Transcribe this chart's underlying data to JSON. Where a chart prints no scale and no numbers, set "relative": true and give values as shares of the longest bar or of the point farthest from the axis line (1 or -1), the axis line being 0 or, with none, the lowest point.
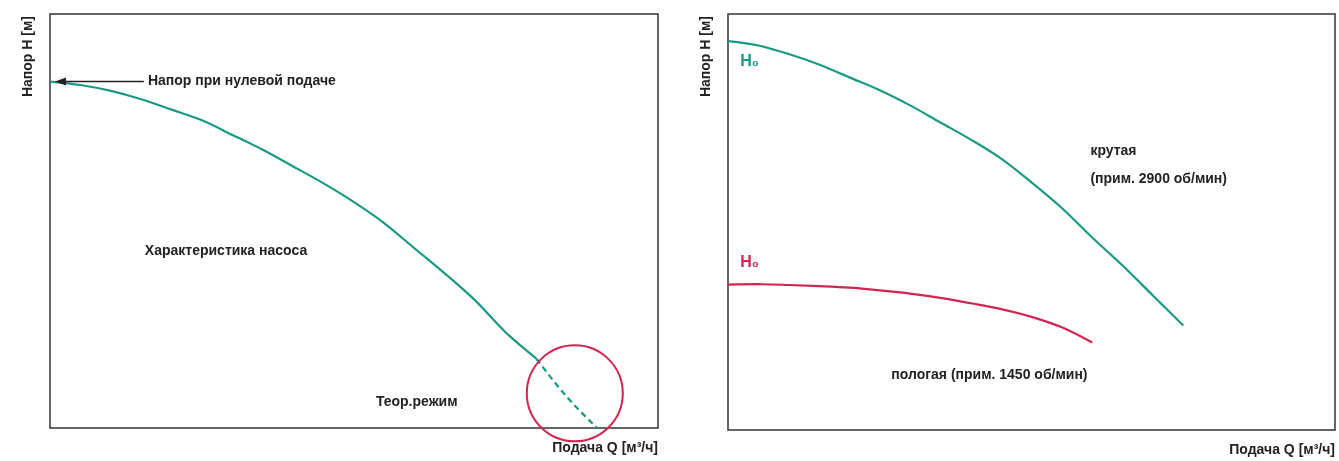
{
  "chart_data": [
    {
      "type": "line",
      "relative": true,
      "xlabel": "Подача Q [м³/ч]",
      "ylabel": "Напор H [м]",
      "categories": [
        null,
        null,
        null,
        null,
        null,
        null,
        null,
        null,
        null,
        null,
        null,
        null,
        null,
        null,
        null,
        null,
        null,
        null,
        null,
        null,
        null
      ],
      "series": [
        {
          "name": "Характеристика насоса",
          "color": "#1a9a85",
          "line_style": "solid",
          "values": [
            1.0,
            0.99,
            0.973,
            0.949,
            0.919,
            0.888,
            0.846,
            0.803,
            0.755,
            0.706,
            0.652,
            0.591,
            0.518,
            0.445,
            0.367,
            0.275,
            0.2,
            null,
            null,
            null,
            null
          ]
        },
        {
          "color": "#1a9a85",
          "line_style": "dashed",
          "values": [
            null,
            null,
            null,
            null,
            null,
            null,
            null,
            null,
            null,
            null,
            null,
            null,
            null,
            null,
            null,
            null,
            0.2,
            0.09,
            0.0,
            null,
            null
          ]
        }
      ],
      "annotations": [
        "Напор при нулевой подаче",
        "Теор.режим"
      ]
    },
    {
      "type": "line",
      "relative": true,
      "xlabel": "Подача Q [м³/ч]",
      "ylabel": "Напор H [м]",
      "categories": [
        null,
        null,
        null,
        null,
        null,
        null,
        null,
        null,
        null,
        null,
        null,
        null,
        null,
        null,
        null,
        null,
        null,
        null,
        null,
        null,
        null
      ],
      "series": [
        {
          "name": "крутая (прим. 2900 об/мин)",
          "color": "#1a9a85",
          "values": [
            1.0,
            0.989,
            0.967,
            0.94,
            0.907,
            0.874,
            0.835,
            0.791,
            0.747,
            0.698,
            0.637,
            0.571,
            0.495,
            0.423,
            0.346,
            0.269,
            null,
            null,
            null,
            null,
            null
          ]
        },
        {
          "name": "пологая (прим. 1450 об/мин)",
          "color": "#d0264f",
          "values": [
            0.374,
            0.375,
            0.373,
            0.37,
            0.366,
            0.359,
            0.351,
            0.34,
            0.326,
            0.311,
            0.291,
            0.264,
            0.225,
            null,
            null,
            null,
            null,
            null,
            null,
            null,
            null
          ]
        }
      ],
      "annotations": [
        "H₀",
        "H₀"
      ]
    }
  ]
}
